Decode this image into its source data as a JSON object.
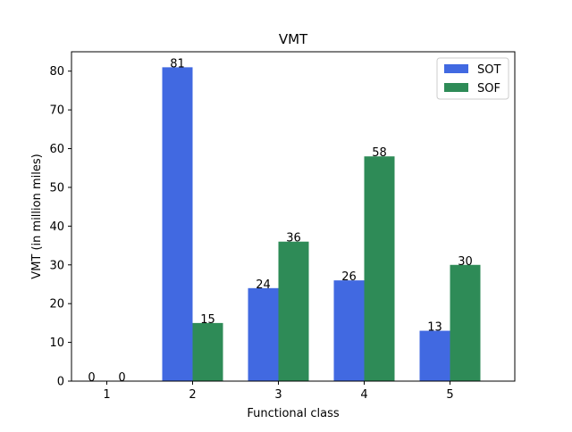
{
  "chart_data": {
    "type": "bar",
    "title": "VMT",
    "xlabel": "Functional class",
    "ylabel": "VMT (in million miles)",
    "categories": [
      "1",
      "2",
      "3",
      "4",
      "5"
    ],
    "series": [
      {
        "name": "SOT",
        "color": "#4169e1",
        "values": [
          0,
          81,
          24,
          26,
          13
        ]
      },
      {
        "name": "SOF",
        "color": "#2e8b57",
        "values": [
          0,
          15,
          36,
          58,
          30
        ]
      }
    ],
    "ylim": [
      0,
      85
    ],
    "yticks": [
      0,
      10,
      20,
      30,
      40,
      50,
      60,
      70,
      80
    ],
    "legend": "top-right",
    "grid": false
  }
}
